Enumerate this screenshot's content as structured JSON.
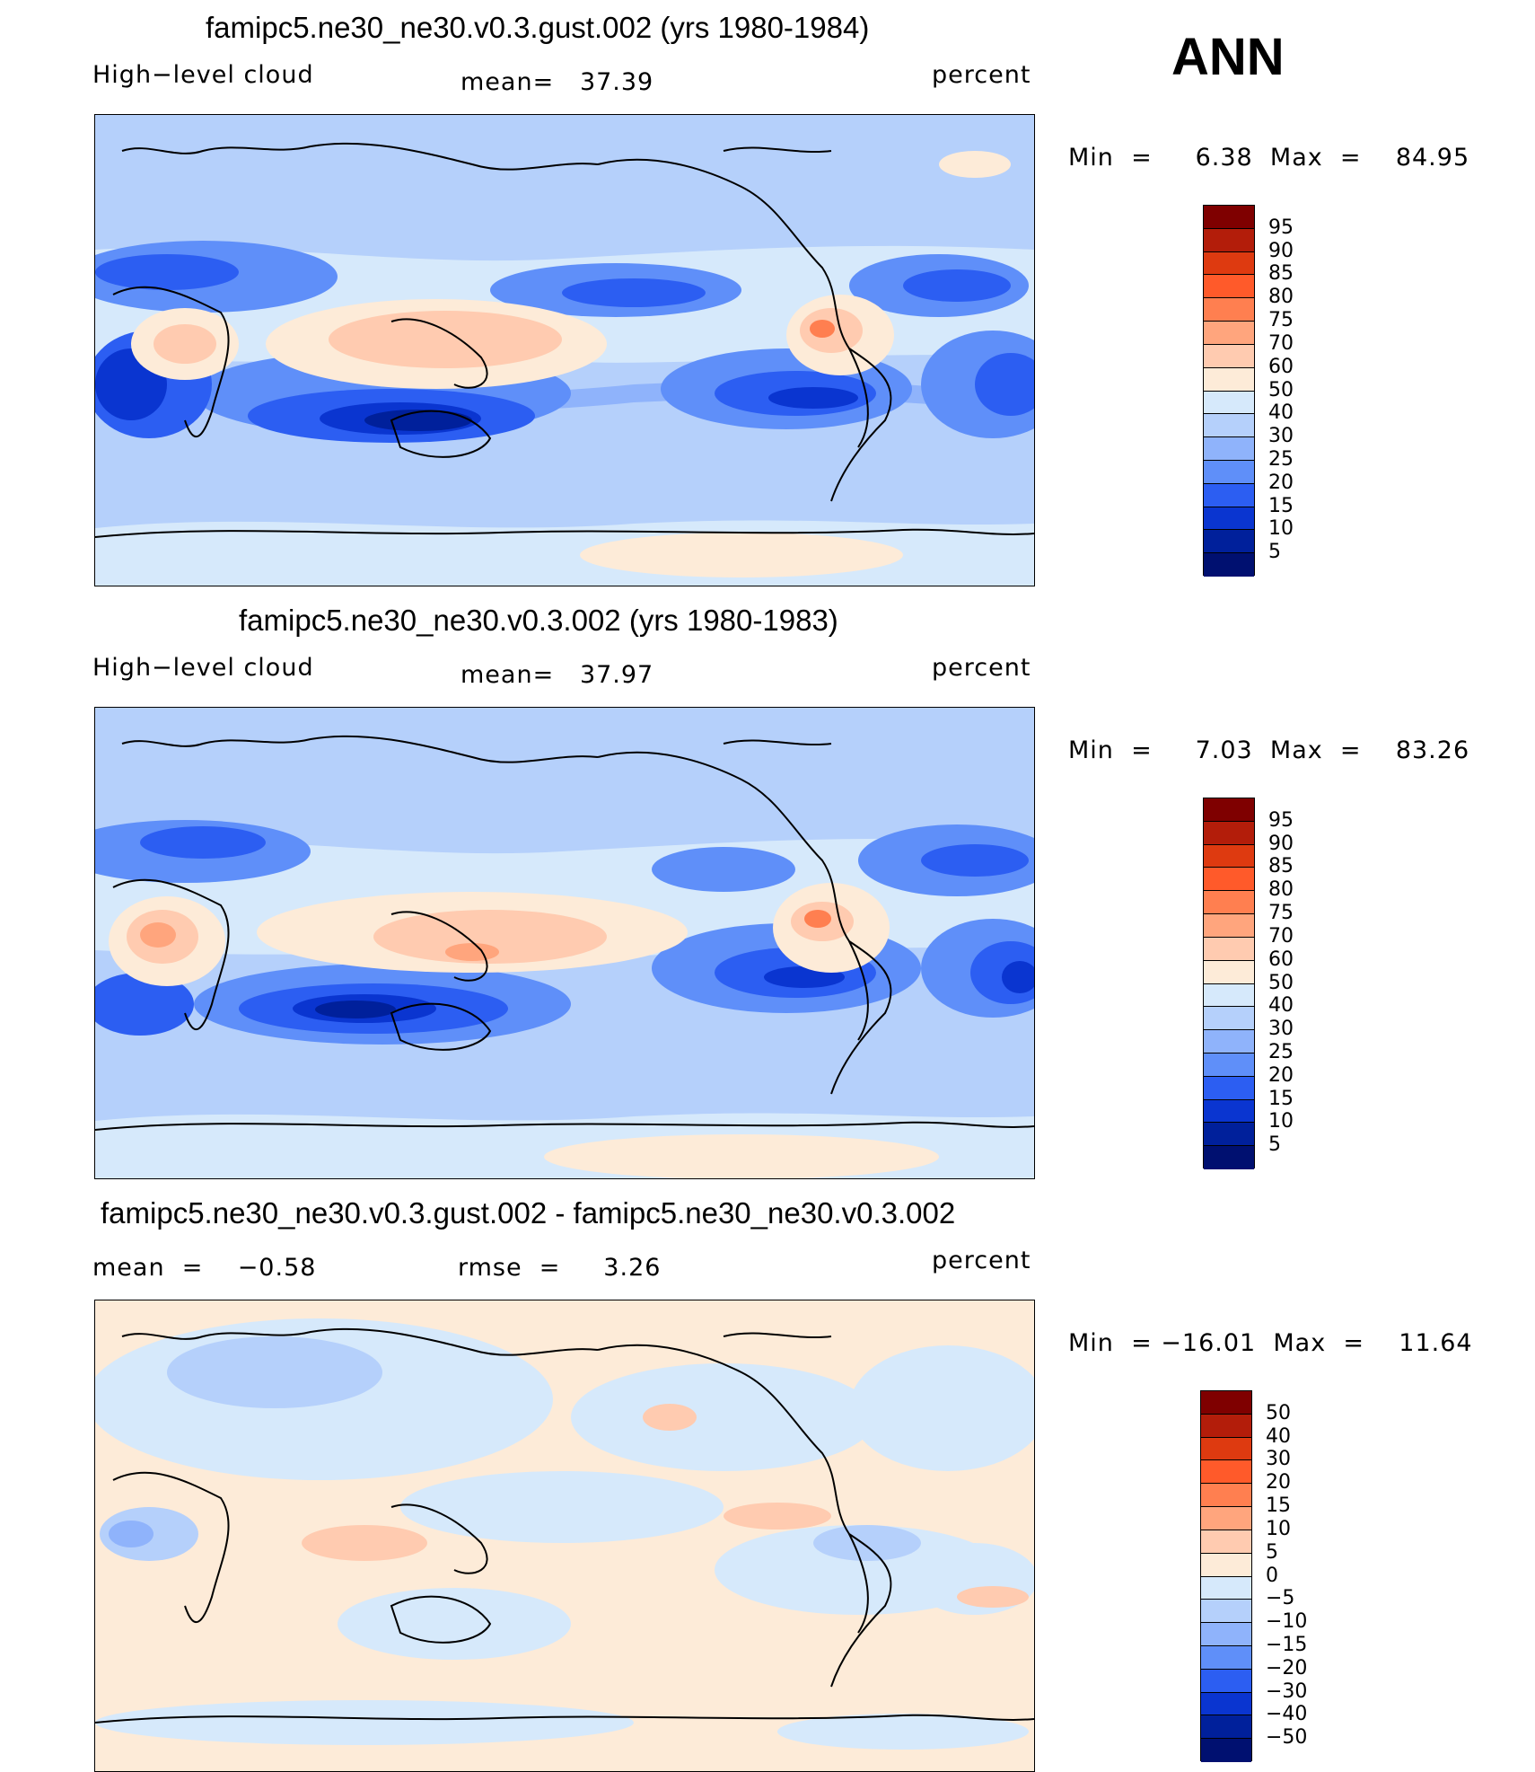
{
  "season": "ANN",
  "panels": [
    {
      "title": "famipc5.ne30_ne30.v0.3.gust.002 (yrs 1980-1984)",
      "left_label": "High−level cloud",
      "center_label": "mean=   37.39",
      "right_label": "percent",
      "minmax": "Min  =     6.38  Max  =    84.95",
      "colorbar_labels": [
        "95",
        "90",
        "85",
        "80",
        "75",
        "70",
        "60",
        "50",
        "40",
        "30",
        "25",
        "20",
        "15",
        "10",
        "5"
      ]
    },
    {
      "title": "famipc5.ne30_ne30.v0.3.002 (yrs 1980-1983)",
      "left_label": "High−level cloud",
      "center_label": "mean=   37.97",
      "right_label": "percent",
      "minmax": "Min  =     7.03  Max  =    83.26",
      "colorbar_labels": [
        "95",
        "90",
        "85",
        "80",
        "75",
        "70",
        "60",
        "50",
        "40",
        "30",
        "25",
        "20",
        "15",
        "10",
        "5"
      ]
    },
    {
      "title": "famipc5.ne30_ne30.v0.3.gust.002 - famipc5.ne30_ne30.v0.3.002",
      "left_label": "mean  =    −0.58",
      "center_label": "rmse  =     3.26",
      "right_label": "percent",
      "minmax": "Min  = −16.01  Max  =    11.64",
      "colorbar_labels": [
        "50",
        "40",
        "30",
        "20",
        "15",
        "10",
        "5",
        "0",
        "−5",
        "−10",
        "−15",
        "−20",
        "−30",
        "−40",
        "−50"
      ]
    }
  ],
  "colors": {
    "abs_scale": [
      "#7f0000",
      "#b31d0a",
      "#de3a10",
      "#ff5a2a",
      "#ff7f50",
      "#ffa57d",
      "#ffcbb0",
      "#fdebd8",
      "#d6e9fb",
      "#b5d0fb",
      "#8fb3fb",
      "#5f8ff9",
      "#2c5ef2",
      "#0a35d0",
      "#00209b",
      "#001070"
    ],
    "diff_scale": [
      "#7f0000",
      "#b31d0a",
      "#de3a10",
      "#ff5a2a",
      "#ff7f50",
      "#ffa57d",
      "#ffcbb0",
      "#fdebd8",
      "#d6e9fb",
      "#b5d0fb",
      "#8fb3fb",
      "#5f8ff9",
      "#2c5ef2",
      "#0a35d0",
      "#00209b",
      "#001070"
    ]
  },
  "chart_data": [
    {
      "type": "heatmap",
      "title": "famipc5.ne30_ne30.v0.3.gust.002 (yrs 1980-1984)",
      "variable": "High-level cloud",
      "units": "percent",
      "mean": 37.39,
      "min": 6.38,
      "max": 84.95,
      "levels": [
        5,
        10,
        15,
        20,
        25,
        30,
        40,
        50,
        60,
        70,
        75,
        80,
        85,
        90,
        95
      ]
    },
    {
      "type": "heatmap",
      "title": "famipc5.ne30_ne30.v0.3.002 (yrs 1980-1983)",
      "variable": "High-level cloud",
      "units": "percent",
      "mean": 37.97,
      "min": 7.03,
      "max": 83.26,
      "levels": [
        5,
        10,
        15,
        20,
        25,
        30,
        40,
        50,
        60,
        70,
        75,
        80,
        85,
        90,
        95
      ]
    },
    {
      "type": "heatmap",
      "title": "famipc5.ne30_ne30.v0.3.gust.002 - famipc5.ne30_ne30.v0.3.002",
      "units": "percent",
      "mean": -0.58,
      "rmse": 3.26,
      "min": -16.01,
      "max": 11.64,
      "levels": [
        -50,
        -40,
        -30,
        -20,
        -15,
        -10,
        -5,
        0,
        5,
        10,
        15,
        20,
        30,
        40,
        50
      ]
    }
  ]
}
